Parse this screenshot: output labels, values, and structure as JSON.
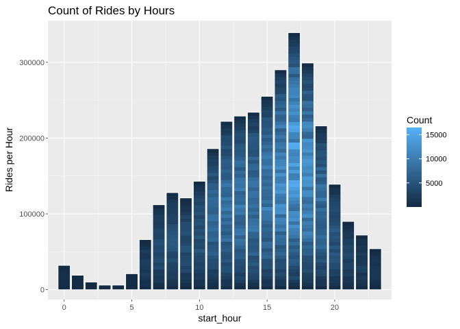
{
  "chart_data": {
    "type": "bar",
    "title": "Count of Rides by Hours",
    "xlabel": "start_hour",
    "ylabel": "Rides per Hour",
    "x": [
      0,
      1,
      2,
      3,
      4,
      5,
      6,
      7,
      8,
      9,
      10,
      11,
      12,
      13,
      14,
      15,
      16,
      17,
      18,
      19,
      20,
      21,
      22,
      23
    ],
    "values": [
      32000,
      19000,
      10000,
      6000,
      6000,
      21000,
      66000,
      112000,
      128000,
      121000,
      143000,
      186000,
      222000,
      229000,
      234000,
      255000,
      290000,
      339000,
      299000,
      216000,
      139000,
      90000,
      72000,
      54000
    ],
    "xlim": [
      -1.2,
      24.2
    ],
    "ylim": [
      -13000,
      355000
    ],
    "xticks": [
      "0",
      "5",
      "10",
      "15",
      "20"
    ],
    "yticks": [
      "0",
      "100000",
      "200000",
      "300000"
    ],
    "grid": true,
    "fill_scale": {
      "name": "Count",
      "low_color": "#132B43",
      "high_color": "#56B1F7",
      "range": [
        0,
        16500
      ],
      "ticks": [
        "5000",
        "10000",
        "15000"
      ]
    },
    "legend_position": "right"
  }
}
